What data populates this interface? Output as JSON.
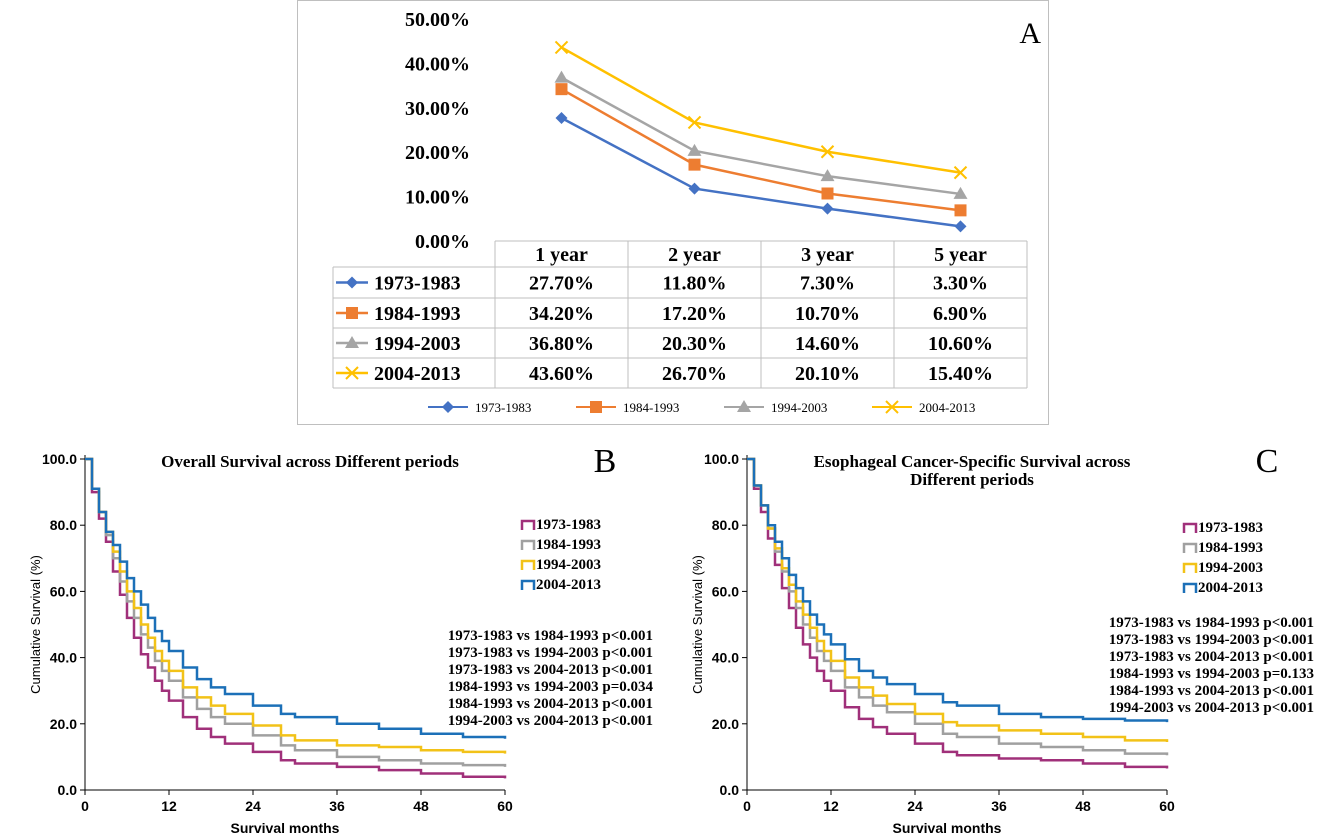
{
  "panel_labels": {
    "a": "A",
    "b": "B",
    "c": "C"
  },
  "colors": {
    "p1": "#4472C4",
    "p2": "#ED7D31",
    "p3": "#A5A5A5",
    "p4": "#FFC000",
    "km1": "#A0307A",
    "km2": "#A0A0A0",
    "km3": "#F2C218",
    "km4": "#1C70B8"
  },
  "chart_data": [
    {
      "panel": "A",
      "type": "line",
      "title": "",
      "categories": [
        "1 year",
        "2 year",
        "3 year",
        "5 year"
      ],
      "y_tick_labels": [
        "50.00%",
        "40.00%",
        "30.00%",
        "20.00%",
        "10.00%",
        "0.00%"
      ],
      "ylim": [
        0,
        50
      ],
      "series": [
        {
          "name": "1973-1983",
          "marker": "diamond",
          "values": [
            27.7,
            11.8,
            7.3,
            3.3
          ],
          "labels": [
            "27.70%",
            "11.80%",
            "7.30%",
            "3.30%"
          ]
        },
        {
          "name": "1984-1993",
          "marker": "square",
          "values": [
            34.2,
            17.2,
            10.7,
            6.9
          ],
          "labels": [
            "34.20%",
            "17.20%",
            "10.70%",
            "6.90%"
          ]
        },
        {
          "name": "1994-2003",
          "marker": "triangle",
          "values": [
            36.8,
            20.3,
            14.6,
            10.6
          ],
          "labels": [
            "36.80%",
            "20.30%",
            "14.60%",
            "10.60%"
          ]
        },
        {
          "name": "2004-2013",
          "marker": "x",
          "values": [
            43.6,
            26.7,
            20.1,
            15.4
          ],
          "labels": [
            "43.60%",
            "26.70%",
            "20.10%",
            "15.40%"
          ]
        }
      ],
      "legend": "bottom"
    },
    {
      "panel": "B",
      "type": "line",
      "title": "Overall Survival across Different periods",
      "xlabel": "Survival months",
      "ylabel": "Cumulative Survival (%)",
      "xlim": [
        0,
        60
      ],
      "ylim": [
        0,
        100
      ],
      "x_ticks": [
        "0",
        "12",
        "24",
        "36",
        "48",
        "60"
      ],
      "y_ticks": [
        "0.0",
        "20.0",
        "40.0",
        "60.0",
        "80.0",
        "100.0"
      ],
      "x": [
        0,
        1,
        2,
        3,
        4,
        5,
        6,
        7,
        8,
        9,
        10,
        11,
        12,
        14,
        16,
        18,
        20,
        24,
        28,
        30,
        36,
        42,
        48,
        54,
        60
      ],
      "series": [
        {
          "name": "1973-1983",
          "values": [
            100,
            90,
            82,
            75,
            66,
            59,
            52,
            46,
            41,
            37,
            33,
            30,
            27,
            22,
            18.5,
            16,
            14,
            11.5,
            9,
            8,
            7,
            6,
            5,
            4,
            3.5
          ]
        },
        {
          "name": "1984-1993",
          "values": [
            100,
            91,
            84,
            77,
            70,
            63,
            57,
            52,
            47,
            43,
            39,
            36,
            33,
            28,
            24.5,
            22,
            20,
            16.5,
            13.5,
            12,
            10,
            9,
            8,
            7.5,
            7
          ]
        },
        {
          "name": "1994-2003",
          "values": [
            100,
            91,
            84,
            78,
            72,
            66,
            60,
            55,
            50,
            46,
            42,
            39,
            36,
            31,
            28,
            25.5,
            23,
            19.5,
            16.5,
            15,
            13.5,
            13,
            12,
            11.5,
            11
          ]
        },
        {
          "name": "2004-2013",
          "values": [
            100,
            91,
            84,
            78,
            74,
            69,
            64,
            60,
            56,
            52,
            48,
            45,
            42,
            37,
            33.5,
            31,
            29,
            25.5,
            23,
            22,
            20,
            18.5,
            17,
            16,
            15.5
          ]
        }
      ],
      "legend_position": "right",
      "annotations": [
        "1973-1983 vs 1984-1993 p<0.001",
        "1973-1983 vs 1994-2003 p<0.001",
        "1973-1983 vs 2004-2013 p<0.001",
        "1984-1993 vs 1994-2003 p=0.034",
        "1984-1993 vs 2004-2013 p<0.001",
        "1994-2003 vs 2004-2013 p<0.001"
      ]
    },
    {
      "panel": "C",
      "type": "line",
      "title": [
        "Esophageal Cancer-Specific Survival across",
        "Different periods"
      ],
      "xlabel": "Survival months",
      "ylabel": "Cumulative Survival (%)",
      "xlim": [
        0,
        60
      ],
      "ylim": [
        0,
        100
      ],
      "x_ticks": [
        "0",
        "12",
        "24",
        "36",
        "48",
        "60"
      ],
      "y_ticks": [
        "0.0",
        "20.0",
        "40.0",
        "60.0",
        "80.0",
        "100.0"
      ],
      "x": [
        0,
        1,
        2,
        3,
        4,
        5,
        6,
        7,
        8,
        9,
        10,
        11,
        12,
        14,
        16,
        18,
        20,
        24,
        28,
        30,
        36,
        42,
        48,
        54,
        60
      ],
      "series": [
        {
          "name": "1973-1983",
          "values": [
            100,
            91,
            84,
            76,
            68,
            61,
            55,
            49,
            44,
            40,
            36,
            33,
            30,
            25,
            21.5,
            19,
            17,
            14,
            11.5,
            10.5,
            9.5,
            9,
            8,
            7,
            6.5
          ]
        },
        {
          "name": "1984-1993",
          "values": [
            100,
            92,
            86,
            79,
            72,
            66,
            60,
            55,
            50,
            46,
            42,
            39,
            36,
            31,
            28,
            25.5,
            23.5,
            20,
            17,
            16,
            14,
            13,
            12,
            11,
            10.5
          ]
        },
        {
          "name": "1994-2003",
          "values": [
            100,
            92,
            86,
            79,
            73,
            67,
            62,
            57,
            53,
            49,
            45,
            42,
            39,
            34,
            31,
            28.5,
            26,
            23,
            20.5,
            19.5,
            18,
            17,
            16,
            15,
            14.5
          ]
        },
        {
          "name": "2004-2013",
          "values": [
            100,
            92,
            86,
            80,
            75,
            70,
            65,
            61,
            57,
            53,
            50,
            47,
            44,
            39.5,
            36,
            34,
            32,
            29,
            26.5,
            25.5,
            23,
            22,
            21.5,
            21,
            20.5
          ]
        }
      ],
      "legend_position": "right",
      "annotations": [
        "1973-1983 vs 1984-1993 p<0.001",
        "1973-1983 vs 1994-2003 p<0.001",
        "1973-1983 vs 2004-2013 p<0.001",
        "1984-1993 vs 1994-2003 p=0.133",
        "1984-1993 vs 2004-2013 p<0.001",
        "1994-2003 vs 2004-2013 p<0.001"
      ]
    }
  ]
}
